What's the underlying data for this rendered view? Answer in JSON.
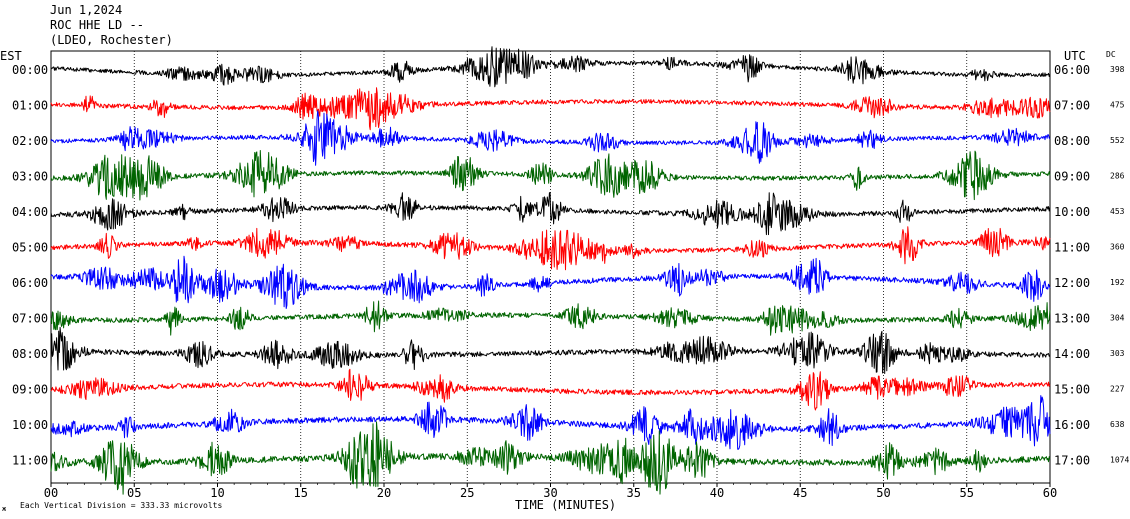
{
  "header": {
    "line1": "Jun 1,2024",
    "line2": "ROC HHE LD --",
    "line3": "(LDEO, Rochester)"
  },
  "left_axis_label": "EST",
  "right_axis_label": "UTC",
  "dc_label": "DC",
  "xlabel": "TIME (MINUTES)",
  "footer_scale": "Each Vertical Division =  333.33 microvolts",
  "footer_mark": "ж",
  "colors": {
    "black": "#000000",
    "red": "#ff0000",
    "blue": "#0000ff",
    "green": "#006400"
  },
  "chart_data": {
    "type": "line",
    "title": "Jun 1,2024 ROC HHE LD -- (LDEO, Rochester)",
    "xlabel": "TIME (MINUTES)",
    "xlim": [
      0,
      60
    ],
    "x_ticks": [
      "00",
      "05",
      "10",
      "15",
      "20",
      "25",
      "30",
      "35",
      "40",
      "45",
      "50",
      "55",
      "60"
    ],
    "grid": true,
    "series": [
      {
        "est": "00:00",
        "utc": "06:00",
        "dc": "398",
        "color": "black",
        "amplitude": 0.35
      },
      {
        "est": "01:00",
        "utc": "07:00",
        "dc": "475",
        "color": "red",
        "amplitude": 0.4
      },
      {
        "est": "02:00",
        "utc": "08:00",
        "dc": "552",
        "color": "blue",
        "amplitude": 0.38
      },
      {
        "est": "03:00",
        "utc": "09:00",
        "dc": "286",
        "color": "green",
        "amplitude": 0.4
      },
      {
        "est": "04:00",
        "utc": "10:00",
        "dc": "453",
        "color": "black",
        "amplitude": 0.42
      },
      {
        "est": "05:00",
        "utc": "11:00",
        "dc": "360",
        "color": "red",
        "amplitude": 0.42
      },
      {
        "est": "06:00",
        "utc": "12:00",
        "dc": "192",
        "color": "blue",
        "amplitude": 0.45
      },
      {
        "est": "07:00",
        "utc": "13:00",
        "dc": "304",
        "color": "green",
        "amplitude": 0.45
      },
      {
        "est": "08:00",
        "utc": "14:00",
        "dc": "303",
        "color": "black",
        "amplitude": 0.45
      },
      {
        "est": "09:00",
        "utc": "15:00",
        "dc": "227",
        "color": "red",
        "amplitude": 0.45
      },
      {
        "est": "10:00",
        "utc": "16:00",
        "dc": "638",
        "color": "blue",
        "amplitude": 0.5
      },
      {
        "est": "11:00",
        "utc": "17:00",
        "dc": "1074",
        "color": "green",
        "amplitude": 0.55
      }
    ]
  }
}
